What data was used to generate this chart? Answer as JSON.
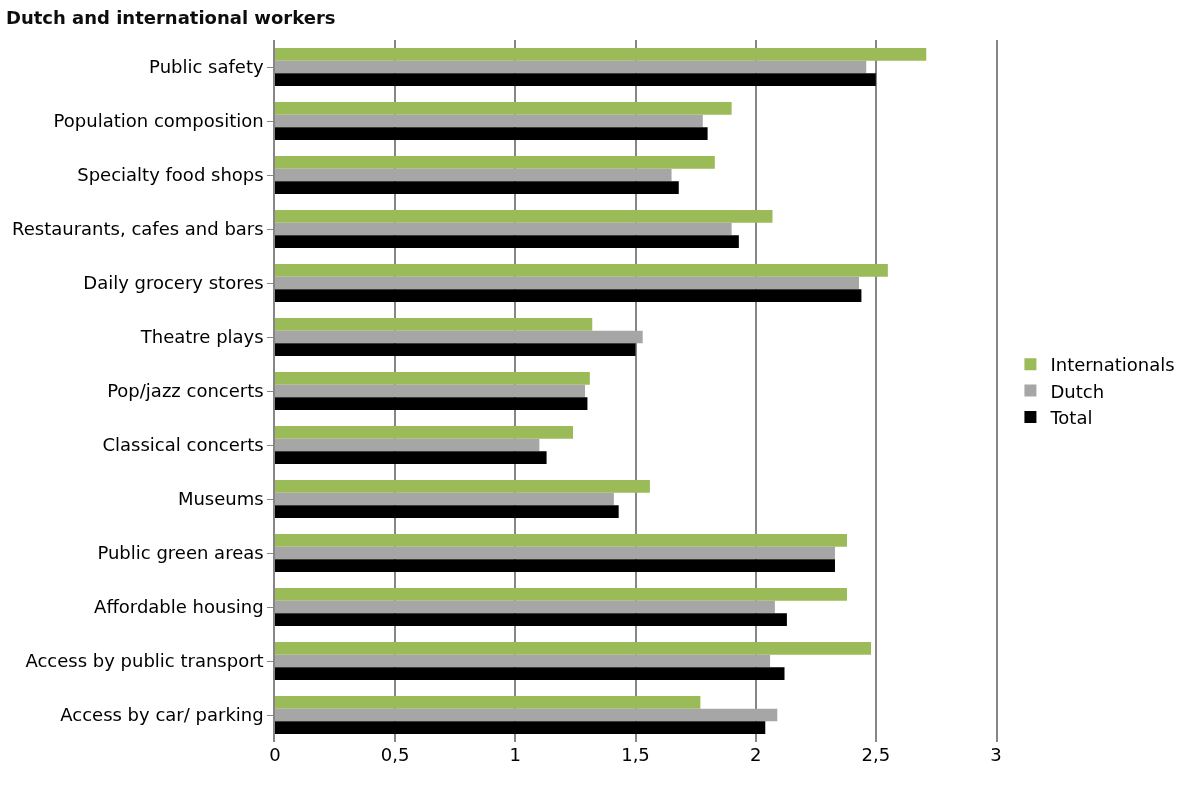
{
  "chart_data": {
    "type": "bar",
    "orientation": "horizontal",
    "title": "Dutch and international workers",
    "categories": [
      "Public safety",
      "Population composition",
      "Specialty food shops",
      "Restaurants, cafes and bars",
      "Daily grocery stores",
      "Theatre plays",
      "Pop/jazz concerts",
      "Classical concerts",
      "Museums",
      "Public green areas",
      "Affordable housing",
      "Access by public transport",
      "Access by car/ parking"
    ],
    "series": [
      {
        "name": "Internationals",
        "color": "#9bbb59",
        "values": [
          2.71,
          1.9,
          1.83,
          2.07,
          2.55,
          1.32,
          1.31,
          1.24,
          1.56,
          2.38,
          2.38,
          2.48,
          1.77
        ]
      },
      {
        "name": "Dutch",
        "color": "#a6a6a6",
        "values": [
          2.46,
          1.78,
          1.65,
          1.9,
          2.43,
          1.53,
          1.29,
          1.1,
          1.41,
          2.33,
          2.08,
          2.06,
          2.09
        ]
      },
      {
        "name": "Total",
        "color": "#000000",
        "values": [
          2.5,
          1.8,
          1.68,
          1.93,
          2.44,
          1.5,
          1.3,
          1.13,
          1.43,
          2.33,
          2.13,
          2.12,
          2.04
        ]
      }
    ],
    "xlim": [
      0,
      3
    ],
    "xticks": [
      0,
      {
        "value": 0.5,
        "label": "0,5"
      },
      1,
      {
        "value": 1.5,
        "label": "1,5"
      },
      2,
      {
        "value": 2.5,
        "label": "2,5"
      },
      3
    ],
    "grid": "x",
    "legend": "right"
  }
}
